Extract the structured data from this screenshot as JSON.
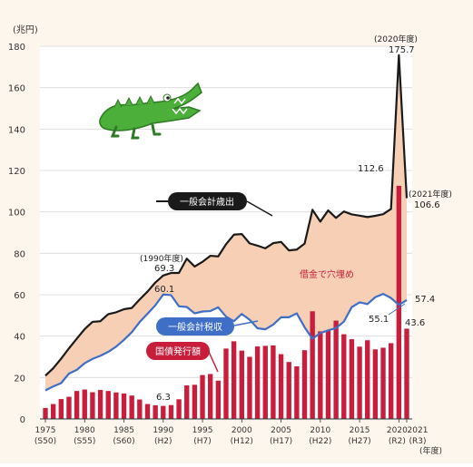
{
  "chart_data": {
    "type": "bar",
    "ylabel": "(兆円)",
    "xlabel_unit": "(年度)",
    "ylim": [
      0,
      180
    ],
    "yticks": [
      0,
      20,
      40,
      60,
      80,
      100,
      120,
      140,
      160,
      180
    ],
    "x": [
      1975,
      1976,
      1977,
      1978,
      1979,
      1980,
      1981,
      1982,
      1983,
      1984,
      1985,
      1986,
      1987,
      1988,
      1989,
      1990,
      1991,
      1992,
      1993,
      1994,
      1995,
      1996,
      1997,
      1998,
      1999,
      2000,
      2001,
      2002,
      2003,
      2004,
      2005,
      2006,
      2007,
      2008,
      2009,
      2010,
      2011,
      2012,
      2013,
      2014,
      2015,
      2016,
      2017,
      2018,
      2019,
      2020,
      2021
    ],
    "xtick_years": [
      "1975",
      "1980",
      "1985",
      "1990",
      "1995",
      "2000",
      "2005",
      "2010",
      "2015",
      "2020",
      "2021"
    ],
    "xtick_eras": [
      "(S50)",
      "(S55)",
      "(S60)",
      "(H2)",
      "(H7)",
      "(H12)",
      "(H17)",
      "(H22)",
      "(H27)",
      "(R2)",
      "(R3)"
    ],
    "xtick_positions": [
      1975,
      1980,
      1985,
      1990,
      1995,
      2000,
      2005,
      2010,
      2015,
      2020,
      2021
    ],
    "series": [
      {
        "name": "一般会計歳出",
        "style": "line",
        "color": "#1a1a1a",
        "values": [
          20.9,
          24.5,
          29.1,
          34.1,
          38.8,
          43.4,
          46.9,
          47.2,
          50.6,
          51.5,
          53.0,
          53.6,
          57.7,
          61.5,
          65.9,
          69.3,
          70.5,
          70.5,
          77.4,
          73.6,
          75.9,
          78.8,
          78.5,
          84.4,
          89.0,
          89.3,
          84.8,
          83.7,
          82.4,
          84.9,
          85.5,
          81.4,
          81.8,
          84.7,
          101.0,
          95.3,
          100.7,
          97.1,
          100.2,
          98.8,
          98.2,
          97.5,
          98.1,
          98.9,
          101.4,
          175.7,
          106.6
        ]
      },
      {
        "name": "一般会計税収",
        "style": "line",
        "color": "#3f6ec7",
        "values": [
          13.8,
          15.7,
          17.3,
          21.9,
          23.7,
          26.9,
          29.0,
          30.5,
          32.4,
          34.9,
          38.2,
          41.9,
          46.8,
          50.8,
          54.9,
          60.1,
          59.8,
          54.4,
          54.1,
          51.0,
          51.9,
          52.1,
          53.9,
          49.4,
          47.2,
          50.7,
          47.9,
          43.8,
          43.3,
          45.6,
          49.1,
          49.1,
          51.0,
          44.3,
          38.7,
          41.5,
          42.8,
          43.9,
          47.0,
          54.0,
          56.3,
          55.5,
          58.8,
          60.4,
          58.4,
          55.1,
          57.4
        ]
      },
      {
        "name": "国債発行額",
        "style": "bar",
        "color": "#c81e3c",
        "values": [
          5.3,
          7.2,
          9.6,
          10.7,
          13.5,
          14.2,
          12.9,
          14.0,
          13.5,
          12.8,
          12.3,
          11.3,
          9.4,
          7.2,
          6.6,
          6.3,
          6.7,
          9.5,
          16.2,
          16.5,
          21.2,
          21.7,
          18.5,
          34.0,
          37.5,
          33.0,
          30.0,
          35.0,
          35.3,
          35.5,
          31.3,
          27.5,
          25.4,
          33.2,
          52.0,
          42.3,
          42.8,
          47.5,
          40.9,
          38.5,
          34.9,
          38.0,
          33.6,
          34.4,
          36.6,
          112.6,
          43.6
        ]
      }
    ],
    "annotations": {
      "spending_1990_year": "(1990年度)",
      "spending_1990_value": "69.3",
      "tax_1990_value": "60.1",
      "bond_1990_value": "6.3",
      "spending_2020_year": "(2020年度)",
      "spending_2020_value": "175.7",
      "bond_2020_value": "112.6",
      "spending_2021_year": "(2021年度)",
      "spending_2021_value": "106.6",
      "tax_2021_value": "57.4",
      "tax_2020_value": "55.1",
      "bond_2021_value": "43.6",
      "gap_label": "借金で穴埋め"
    },
    "colors": {
      "gap_fill": "#f6cfb5",
      "frame_background": "#fdf6ec",
      "crocodile": "#4caf3a",
      "gap_label_color": "#c81e3c"
    }
  }
}
